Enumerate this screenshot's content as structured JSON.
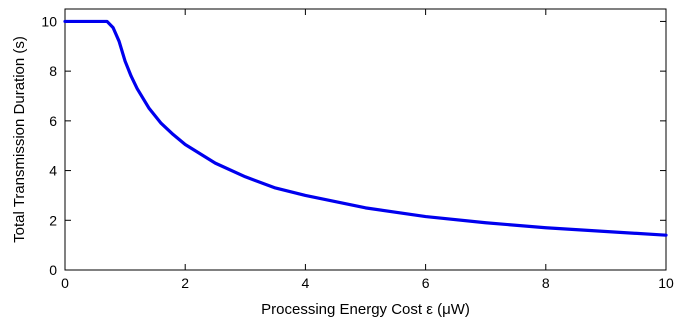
{
  "chart_data": {
    "type": "line",
    "title": "",
    "xlabel": "Processing Energy Cost ε (μW)",
    "ylabel": "Total Transmission Duration (s)",
    "xlim": [
      0,
      10
    ],
    "ylim": [
      0,
      10.5
    ],
    "x_ticks": [
      0,
      2,
      4,
      6,
      8,
      10
    ],
    "y_ticks": [
      0,
      2,
      4,
      6,
      8,
      10
    ],
    "x_tick_labels": [
      "0",
      "2",
      "4",
      "6",
      "8",
      "10"
    ],
    "y_tick_labels": [
      "0",
      "2",
      "4",
      "6",
      "8",
      "10"
    ],
    "grid": false,
    "legend": "none",
    "series": [
      {
        "color": "#0000ee",
        "x": [
          0,
          0.2,
          0.4,
          0.6,
          0.7,
          0.8,
          0.9,
          1.0,
          1.1,
          1.2,
          1.4,
          1.6,
          1.8,
          2.0,
          2.5,
          3.0,
          3.5,
          4.0,
          5.0,
          6.0,
          7.0,
          8.0,
          9.0,
          10.0
        ],
        "y": [
          10.0,
          10.0,
          10.0,
          10.0,
          10.0,
          9.75,
          9.2,
          8.4,
          7.8,
          7.3,
          6.5,
          5.9,
          5.45,
          5.05,
          4.3,
          3.75,
          3.3,
          3.0,
          2.5,
          2.15,
          1.9,
          1.7,
          1.55,
          1.4
        ]
      }
    ]
  }
}
